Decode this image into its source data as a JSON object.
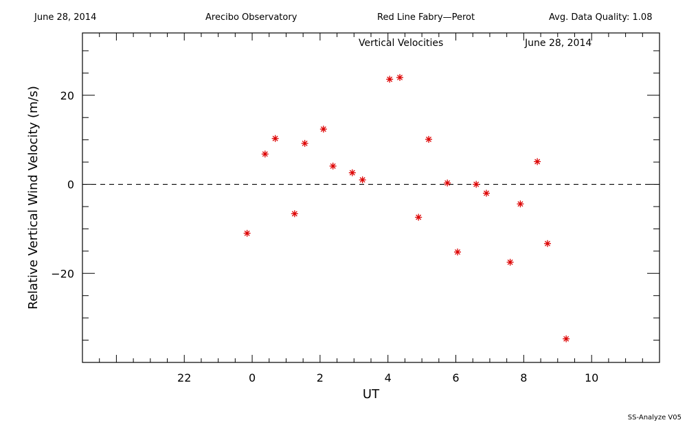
{
  "header": {
    "date": "June 28, 2014",
    "observatory": "Arecibo Observatory",
    "instrument": "Red Line Fabry—Perot",
    "quality": "Avg. Data Quality: 1.08"
  },
  "footer": "SS-Analyze V05",
  "chart_data": {
    "type": "scatter",
    "title": "Vertical Velocities",
    "subtitle": "June 28, 2014",
    "xlabel": "UT",
    "ylabel": "Relative Vertical Wind Velocity (m/s)",
    "xlim": [
      -5,
      12
    ],
    "ylim": [
      -40,
      34
    ],
    "x_ticks": [
      22,
      0,
      2,
      4,
      6,
      8,
      10
    ],
    "y_ticks": [
      20,
      0,
      -20
    ],
    "reference_line": 0,
    "marker": "asterisk",
    "marker_color": "#dd0000",
    "grid": false,
    "x": [
      -0.15,
      0.38,
      0.68,
      1.25,
      1.55,
      2.1,
      2.38,
      2.95,
      3.25,
      4.05,
      4.35,
      4.9,
      5.2,
      5.75,
      6.05,
      6.6,
      6.9,
      7.6,
      7.9,
      8.4,
      8.7,
      9.25
    ],
    "y": [
      -11,
      6.8,
      10.3,
      -6.6,
      9.2,
      12.4,
      4.1,
      2.6,
      1.0,
      23.6,
      24.0,
      -7.4,
      10.1,
      0.3,
      -15.2,
      0.0,
      -2.0,
      -17.5,
      -4.4,
      5.1,
      -13.3,
      -34.7
    ]
  }
}
